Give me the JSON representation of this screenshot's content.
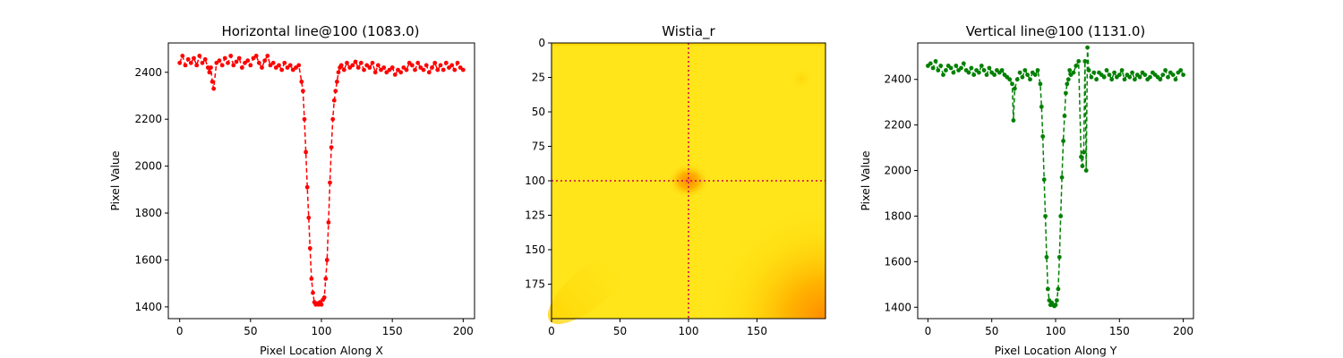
{
  "chart_data": [
    {
      "type": "line",
      "title": "Horizontal line@100 (1083.0)",
      "xlabel": "Pixel Location Along X",
      "ylabel": "Pixel Value",
      "xlim": [
        -8,
        208
      ],
      "ylim": [
        1350,
        2525
      ],
      "xticks": [
        0,
        50,
        100,
        150,
        200
      ],
      "yticks": [
        1400,
        1600,
        1800,
        2000,
        2200,
        2400
      ],
      "color": "#ff0000",
      "line_style": "dashed",
      "marker": "circle",
      "grid": false,
      "series": [
        {
          "x": [
            0,
            2,
            4,
            6,
            8,
            10,
            12,
            14,
            16,
            18,
            20,
            21,
            22,
            23,
            24,
            26,
            28,
            30,
            32,
            34,
            36,
            38,
            40,
            42,
            44,
            46,
            48,
            50,
            52,
            54,
            56,
            58,
            60,
            62,
            64,
            66,
            68,
            70,
            72,
            74,
            76,
            78,
            80,
            82,
            84,
            86,
            87,
            88,
            89,
            90,
            91,
            92,
            93,
            94,
            95,
            96,
            97,
            98,
            99,
            100,
            101,
            102,
            103,
            104,
            105,
            106,
            107,
            108,
            109,
            110,
            111,
            112,
            113,
            114,
            116,
            118,
            120,
            122,
            124,
            126,
            128,
            130,
            132,
            134,
            136,
            138,
            140,
            142,
            144,
            146,
            148,
            150,
            152,
            154,
            156,
            158,
            160,
            162,
            164,
            166,
            168,
            170,
            172,
            174,
            176,
            178,
            180,
            182,
            184,
            186,
            188,
            190,
            192,
            194,
            196,
            198,
            200
          ],
          "y": [
            2440,
            2470,
            2430,
            2455,
            2440,
            2460,
            2430,
            2470,
            2440,
            2455,
            2420,
            2400,
            2420,
            2360,
            2330,
            2440,
            2450,
            2430,
            2460,
            2440,
            2470,
            2430,
            2445,
            2460,
            2420,
            2440,
            2450,
            2430,
            2460,
            2470,
            2440,
            2420,
            2450,
            2470,
            2430,
            2440,
            2420,
            2430,
            2410,
            2440,
            2420,
            2430,
            2410,
            2420,
            2430,
            2360,
            2320,
            2200,
            2060,
            1910,
            1780,
            1650,
            1520,
            1460,
            1420,
            1410,
            1415,
            1410,
            1420,
            1410,
            1430,
            1440,
            1520,
            1600,
            1760,
            1930,
            2080,
            2200,
            2280,
            2320,
            2360,
            2400,
            2420,
            2430,
            2410,
            2440,
            2420,
            2430,
            2445,
            2420,
            2440,
            2410,
            2430,
            2420,
            2440,
            2400,
            2430,
            2410,
            2420,
            2400,
            2410,
            2420,
            2390,
            2410,
            2400,
            2420,
            2410,
            2440,
            2430,
            2410,
            2440,
            2420,
            2410,
            2430,
            2400,
            2420,
            2440,
            2410,
            2430,
            2410,
            2440,
            2420,
            2430,
            2410,
            2440,
            2420,
            2410
          ]
        }
      ]
    },
    {
      "type": "heatmap",
      "title": "Wistia_r",
      "xlim": [
        0,
        200
      ],
      "ylim": [
        200,
        0
      ],
      "xticks": [
        0,
        50,
        100,
        150
      ],
      "yticks": [
        0,
        25,
        50,
        75,
        100,
        125,
        150,
        175
      ],
      "colormap": "Wistia_r",
      "crosshair": {
        "x": 100,
        "y": 100,
        "color": "#c9005f",
        "style": "dotted"
      },
      "colors": {
        "low": "#ffe81a",
        "mid": "#ffc500",
        "high": "#ff8c00"
      }
    },
    {
      "type": "line",
      "title": "Vertical line@100 (1131.0)",
      "xlabel": "Pixel Location Along Y",
      "ylabel": "Pixel Value",
      "xlim": [
        -8,
        208
      ],
      "ylim": [
        1350,
        2560
      ],
      "xticks": [
        0,
        50,
        100,
        150,
        200
      ],
      "yticks": [
        1400,
        1600,
        1800,
        2000,
        2200,
        2400
      ],
      "color": "#008000",
      "line_style": "dashed",
      "marker": "circle",
      "grid": false,
      "series": [
        {
          "x": [
            0,
            2,
            4,
            6,
            8,
            10,
            12,
            14,
            16,
            18,
            20,
            22,
            24,
            26,
            28,
            30,
            32,
            34,
            36,
            38,
            40,
            42,
            44,
            46,
            48,
            50,
            52,
            54,
            56,
            58,
            60,
            62,
            64,
            66,
            67,
            68,
            70,
            72,
            74,
            76,
            78,
            80,
            82,
            84,
            86,
            88,
            89,
            90,
            91,
            92,
            93,
            94,
            95,
            96,
            97,
            98,
            99,
            100,
            101,
            102,
            103,
            104,
            105,
            106,
            107,
            108,
            109,
            110,
            111,
            112,
            114,
            116,
            118,
            120,
            121,
            122,
            123,
            124,
            125,
            126,
            128,
            130,
            132,
            134,
            136,
            138,
            140,
            142,
            144,
            146,
            148,
            150,
            152,
            154,
            156,
            158,
            160,
            162,
            164,
            166,
            168,
            170,
            172,
            174,
            176,
            178,
            180,
            182,
            184,
            186,
            188,
            190,
            192,
            194,
            196,
            198,
            200
          ],
          "y": [
            2460,
            2470,
            2450,
            2480,
            2440,
            2460,
            2420,
            2440,
            2460,
            2450,
            2430,
            2460,
            2440,
            2450,
            2470,
            2440,
            2430,
            2450,
            2420,
            2440,
            2430,
            2460,
            2440,
            2420,
            2450,
            2430,
            2420,
            2440,
            2430,
            2440,
            2420,
            2410,
            2400,
            2380,
            2220,
            2360,
            2400,
            2430,
            2410,
            2440,
            2420,
            2400,
            2430,
            2420,
            2440,
            2380,
            2280,
            2150,
            1960,
            1800,
            1620,
            1480,
            1430,
            1410,
            1420,
            1410,
            1405,
            1410,
            1430,
            1480,
            1620,
            1800,
            1970,
            2130,
            2240,
            2340,
            2380,
            2400,
            2440,
            2420,
            2430,
            2460,
            2480,
            2060,
            2020,
            2080,
            2480,
            2000,
            2540,
            2440,
            2410,
            2430,
            2400,
            2430,
            2420,
            2410,
            2440,
            2420,
            2400,
            2430,
            2410,
            2420,
            2440,
            2400,
            2420,
            2410,
            2430,
            2400,
            2420,
            2410,
            2430,
            2420,
            2400,
            2410,
            2430,
            2420,
            2410,
            2400,
            2420,
            2440,
            2410,
            2430,
            2420,
            2400,
            2430,
            2440,
            2420
          ]
        }
      ]
    }
  ]
}
